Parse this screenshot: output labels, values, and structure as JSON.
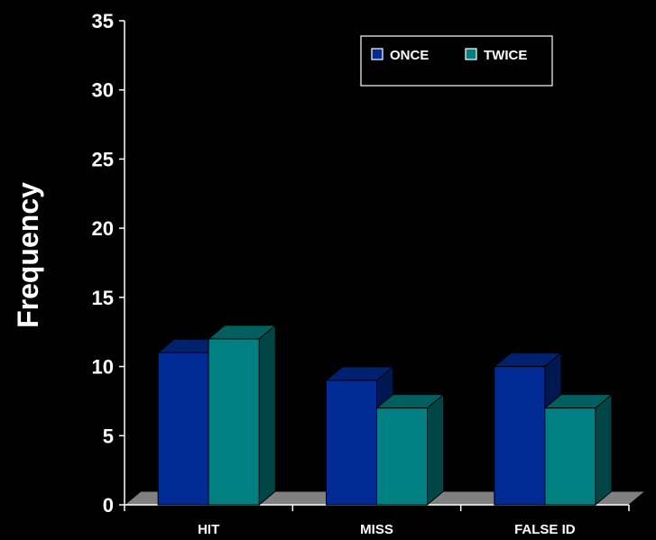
{
  "chart_data": {
    "type": "bar",
    "title": "",
    "xlabel": "",
    "ylabel": "Frequency",
    "categories": [
      "HIT",
      "MISS",
      "FALSE ID"
    ],
    "series": [
      {
        "name": "ONCE",
        "values": [
          11,
          9,
          10
        ],
        "color": "#002b95"
      },
      {
        "name": "TWICE",
        "values": [
          12,
          7,
          7
        ],
        "color": "#008080"
      }
    ],
    "ylim": [
      0,
      35
    ],
    "yticks": [
      "0",
      "5",
      "10",
      "15",
      "20",
      "25",
      "30",
      "35"
    ],
    "grid": false,
    "legend_position": "top-right",
    "style": "3d",
    "background": "#000000",
    "floor_color": "#808080"
  }
}
